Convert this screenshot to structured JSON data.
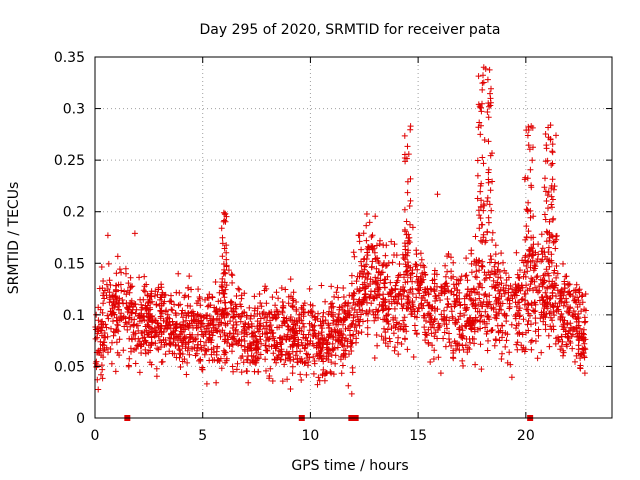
{
  "chart_data": {
    "type": "scatter",
    "title": "Day 295 of 2020, SRMTID for receiver pata",
    "xlabel": "GPS time / hours",
    "ylabel": "SRMTID / TECUs",
    "xlim": [
      0,
      24
    ],
    "ylim": [
      0,
      0.35
    ],
    "x_ticks": [
      "0",
      "5",
      "10",
      "15",
      "20"
    ],
    "y_ticks": [
      "0",
      "0.05",
      "0.1",
      "0.15",
      "0.2",
      "0.25",
      "0.3",
      "0.35"
    ],
    "x_tick_values": [
      0,
      5,
      10,
      15,
      20
    ],
    "y_tick_values": [
      0,
      0.05,
      0.1,
      0.15,
      0.2,
      0.25,
      0.3,
      0.35
    ],
    "grid": true,
    "marker": "+",
    "colors": {
      "series": "#e00000",
      "grid": "#a0a0a0",
      "axis": "#000000"
    },
    "zero_markers_x": [
      1.5,
      9.6,
      11.9,
      12.1,
      20.2
    ],
    "profile": [
      [
        0.0,
        0.075,
        0.02
      ],
      [
        0.5,
        0.095,
        0.025
      ],
      [
        1.0,
        0.11,
        0.025
      ],
      [
        1.5,
        0.1,
        0.025
      ],
      [
        2.0,
        0.09,
        0.02
      ],
      [
        2.5,
        0.095,
        0.02
      ],
      [
        3.0,
        0.09,
        0.02
      ],
      [
        3.5,
        0.09,
        0.02
      ],
      [
        4.0,
        0.085,
        0.02
      ],
      [
        4.5,
        0.09,
        0.02
      ],
      [
        5.0,
        0.085,
        0.02
      ],
      [
        5.5,
        0.08,
        0.02
      ],
      [
        6.0,
        0.095,
        0.025
      ],
      [
        6.5,
        0.09,
        0.02
      ],
      [
        7.0,
        0.08,
        0.02
      ],
      [
        7.5,
        0.075,
        0.02
      ],
      [
        8.0,
        0.08,
        0.02
      ],
      [
        8.5,
        0.08,
        0.02
      ],
      [
        9.0,
        0.085,
        0.02
      ],
      [
        9.5,
        0.08,
        0.02
      ],
      [
        10.0,
        0.075,
        0.02
      ],
      [
        10.5,
        0.075,
        0.02
      ],
      [
        11.0,
        0.08,
        0.02
      ],
      [
        11.5,
        0.085,
        0.02
      ],
      [
        12.0,
        0.095,
        0.025
      ],
      [
        12.5,
        0.125,
        0.025
      ],
      [
        13.0,
        0.13,
        0.025
      ],
      [
        13.5,
        0.115,
        0.025
      ],
      [
        14.0,
        0.105,
        0.025
      ],
      [
        14.5,
        0.125,
        0.025
      ],
      [
        15.0,
        0.115,
        0.025
      ],
      [
        15.5,
        0.1,
        0.02
      ],
      [
        16.0,
        0.11,
        0.025
      ],
      [
        16.5,
        0.105,
        0.025
      ],
      [
        17.0,
        0.095,
        0.025
      ],
      [
        17.5,
        0.11,
        0.025
      ],
      [
        18.0,
        0.12,
        0.03
      ],
      [
        18.5,
        0.115,
        0.025
      ],
      [
        19.0,
        0.105,
        0.025
      ],
      [
        19.5,
        0.1,
        0.025
      ],
      [
        20.0,
        0.115,
        0.03
      ],
      [
        20.5,
        0.12,
        0.025
      ],
      [
        21.0,
        0.135,
        0.025
      ],
      [
        21.5,
        0.115,
        0.025
      ],
      [
        22.0,
        0.1,
        0.02
      ],
      [
        22.5,
        0.09,
        0.02
      ],
      [
        22.8,
        0.085,
        0.02
      ]
    ],
    "bursts": [
      {
        "center": 6.0,
        "width": 0.12,
        "min": 0.12,
        "max": 0.2,
        "count": 30
      },
      {
        "center": 14.5,
        "width": 0.15,
        "min": 0.15,
        "max": 0.285,
        "count": 30
      },
      {
        "center": 18.1,
        "width": 0.35,
        "min": 0.17,
        "max": 0.34,
        "count": 70
      },
      {
        "center": 20.15,
        "width": 0.2,
        "min": 0.15,
        "max": 0.285,
        "count": 40
      },
      {
        "center": 21.1,
        "width": 0.25,
        "min": 0.17,
        "max": 0.285,
        "count": 40
      },
      {
        "center": 12.5,
        "width": 0.6,
        "min": 0.15,
        "max": 0.2,
        "count": 20
      }
    ],
    "notable_points": [
      {
        "x": 18.05,
        "y": 0.34
      },
      {
        "x": 14.65,
        "y": 0.283
      },
      {
        "x": 20.25,
        "y": 0.283
      },
      {
        "x": 21.15,
        "y": 0.284
      },
      {
        "x": 21.4,
        "y": 0.274
      },
      {
        "x": 18.35,
        "y": 0.303
      },
      {
        "x": 0.6,
        "y": 0.177
      },
      {
        "x": 1.85,
        "y": 0.179
      },
      {
        "x": 6.05,
        "y": 0.198
      },
      {
        "x": 15.9,
        "y": 0.217
      }
    ],
    "point_count": 2600,
    "x_range": [
      0.0,
      22.8
    ]
  }
}
